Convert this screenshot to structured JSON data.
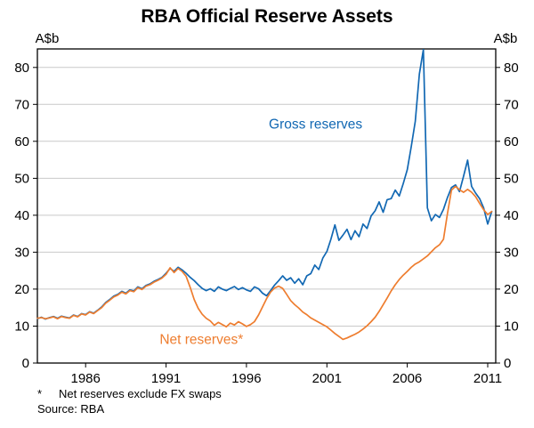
{
  "chart_data": {
    "type": "line",
    "title": "RBA Official Reserve Assets",
    "ylabel_left": "A$b",
    "ylabel_right": "A$b",
    "ylim": [
      0,
      85
    ],
    "yticks": [
      0,
      10,
      20,
      30,
      40,
      50,
      60,
      70,
      80
    ],
    "xlim": [
      1983,
      2011.5
    ],
    "xticks": [
      1986,
      1991,
      1996,
      2001,
      2006,
      2011
    ],
    "grid": "horizontal",
    "grid_color": "#c9c9c9",
    "frame_color": "#000000",
    "x_start": 1983.0,
    "x_step": 0.25,
    "series": [
      {
        "name": "Gross reserves",
        "color": "#1268b3",
        "values": [
          12.0,
          12.4,
          11.9,
          12.3,
          12.6,
          12.1,
          12.7,
          12.4,
          12.2,
          13.0,
          12.6,
          13.4,
          13.1,
          13.9,
          13.5,
          14.3,
          15.2,
          16.4,
          17.2,
          18.1,
          18.6,
          19.4,
          18.9,
          19.8,
          19.5,
          20.6,
          20.1,
          21.0,
          21.4,
          22.1,
          22.6,
          23.2,
          24.3,
          25.6,
          24.8,
          25.9,
          25.2,
          24.3,
          23.2,
          22.3,
          21.2,
          20.2,
          19.6,
          20.1,
          19.4,
          20.6,
          20.0,
          19.6,
          20.2,
          20.7,
          19.9,
          20.4,
          19.8,
          19.4,
          20.6,
          20.1,
          18.9,
          18.2,
          19.6,
          21.1,
          22.3,
          23.6,
          22.4,
          23.1,
          21.6,
          22.8,
          21.2,
          23.6,
          24.2,
          26.5,
          25.3,
          28.4,
          30.2,
          33.5,
          37.4,
          33.2,
          34.6,
          36.2,
          33.4,
          35.8,
          34.2,
          37.6,
          36.4,
          39.8,
          41.2,
          43.6,
          40.8,
          44.2,
          44.5,
          46.8,
          45.2,
          48.6,
          52.3,
          58.6,
          65.4,
          78.2,
          84.8,
          42.0,
          38.5,
          40.2,
          39.4,
          41.6,
          44.8,
          47.5,
          48.2,
          46.4,
          50.6,
          54.9,
          47.8,
          46.0,
          44.5,
          42.0,
          37.6,
          41.0
        ]
      },
      {
        "name": "Net reserves*",
        "color": "#ee7d2f",
        "values": [
          12.1,
          12.3,
          12.0,
          12.2,
          12.5,
          12.0,
          12.6,
          12.3,
          12.1,
          12.9,
          12.5,
          13.3,
          13.0,
          13.8,
          13.4,
          14.2,
          15.0,
          16.2,
          17.0,
          17.9,
          18.4,
          19.2,
          18.7,
          19.6,
          19.3,
          20.4,
          19.9,
          20.8,
          21.2,
          21.9,
          22.4,
          23.0,
          24.0,
          25.8,
          24.5,
          25.6,
          24.8,
          23.5,
          20.5,
          17.2,
          14.8,
          13.2,
          12.1,
          11.4,
          10.2,
          11.0,
          10.4,
          9.8,
          10.8,
          10.3,
          11.2,
          10.6,
          9.9,
          10.4,
          11.2,
          13.0,
          15.2,
          17.4,
          19.2,
          20.3,
          20.8,
          20.2,
          18.6,
          16.9,
          15.8,
          14.9,
          13.8,
          13.1,
          12.2,
          11.6,
          11.0,
          10.4,
          9.8,
          8.9,
          8.0,
          7.2,
          6.4,
          6.8,
          7.3,
          7.8,
          8.4,
          9.2,
          10.1,
          11.2,
          12.4,
          14.0,
          15.8,
          17.6,
          19.5,
          21.2,
          22.6,
          23.8,
          24.8,
          25.9,
          26.8,
          27.4,
          28.2,
          29.0,
          30.1,
          31.2,
          32.0,
          33.5,
          40.5,
          46.8,
          47.8,
          46.9,
          46.2,
          47.0,
          46.2,
          45.0,
          43.2,
          41.5,
          40.2,
          41.0
        ]
      }
    ],
    "annotations": [
      {
        "text": "Gross reserves",
        "x": 2000.3,
        "y": 63.5,
        "color": "#1268b3"
      },
      {
        "text": "Net reserves*",
        "x": 1993.2,
        "y": 5.2,
        "color": "#ee7d2f"
      }
    ],
    "footnote_marker": "*",
    "footnote_text": "Net reserves exclude FX swaps",
    "source": "Source: RBA"
  }
}
